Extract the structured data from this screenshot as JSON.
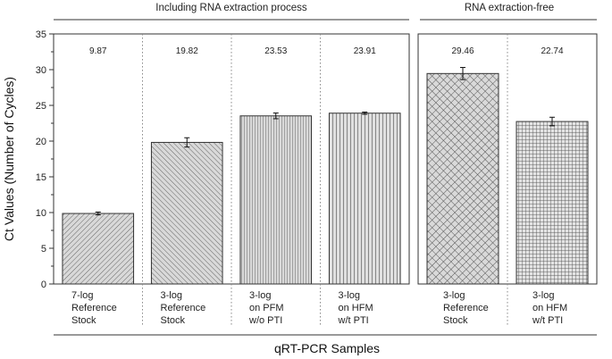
{
  "chart_data": {
    "type": "bar",
    "ylabel": "Ct Values (Number of Cycles)",
    "xlabel": "qRT-PCR Samples",
    "ylim": [
      0,
      35
    ],
    "yticks": [
      0,
      5,
      10,
      15,
      20,
      25,
      30,
      35
    ],
    "groups": [
      {
        "name": "Including RNA extraction process",
        "bars": [
          {
            "label_lines": [
              "7-log",
              "Reference",
              "Stock"
            ],
            "value": 9.87,
            "value_label": "9.87",
            "error": 0.2,
            "pattern": "diag-fine"
          },
          {
            "label_lines": [
              "3-log",
              "Reference",
              "Stock"
            ],
            "value": 19.82,
            "value_label": "19.82",
            "error": 0.65,
            "pattern": "diag-wide"
          },
          {
            "label_lines": [
              "3-log",
              "on PFM",
              "w/o PTI"
            ],
            "value": 23.53,
            "value_label": "23.53",
            "error": 0.4,
            "pattern": "vertical-fine"
          },
          {
            "label_lines": [
              "3-log",
              "on HFM",
              "w/t PTI"
            ],
            "value": 23.91,
            "value_label": "23.91",
            "error": 0.15,
            "pattern": "vertical-wide"
          }
        ]
      },
      {
        "name": "RNA extraction-free",
        "bars": [
          {
            "label_lines": [
              "3-log",
              "Reference",
              "Stock"
            ],
            "value": 29.46,
            "value_label": "29.46",
            "error": 0.85,
            "pattern": "crosshatch-diag"
          },
          {
            "label_lines": [
              "3-log",
              "on HFM",
              "w/t PTI"
            ],
            "value": 22.74,
            "value_label": "22.74",
            "error": 0.6,
            "pattern": "grid"
          }
        ]
      }
    ],
    "colors": {
      "bar_fill": "#d9d9d9",
      "hatch": "#555555",
      "axis": "#333333",
      "separator": "#888888"
    }
  }
}
